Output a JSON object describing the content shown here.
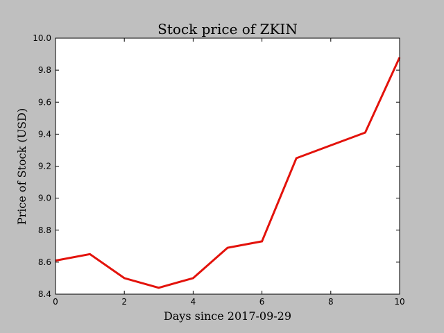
{
  "chart_data": {
    "type": "line",
    "title": "Stock price of ZKIN",
    "xlabel": "Days since 2017-09-29",
    "ylabel": "Price of Stock (USD)",
    "xlim": [
      0,
      10
    ],
    "ylim": [
      8.4,
      10.0
    ],
    "x_ticks": [
      0,
      2,
      4,
      6,
      8,
      10
    ],
    "y_ticks": [
      "8.4",
      "8.6",
      "8.8",
      "9.0",
      "9.2",
      "9.4",
      "9.6",
      "9.8",
      "10.0"
    ],
    "grid": false,
    "series": [
      {
        "color": "#e3120b",
        "x": [
          0,
          1,
          2,
          3,
          4,
          5,
          6,
          7,
          8,
          9,
          10
        ],
        "y": [
          8.61,
          8.65,
          8.5,
          8.44,
          8.5,
          8.69,
          8.73,
          9.25,
          9.33,
          9.41,
          9.88
        ]
      }
    ]
  }
}
